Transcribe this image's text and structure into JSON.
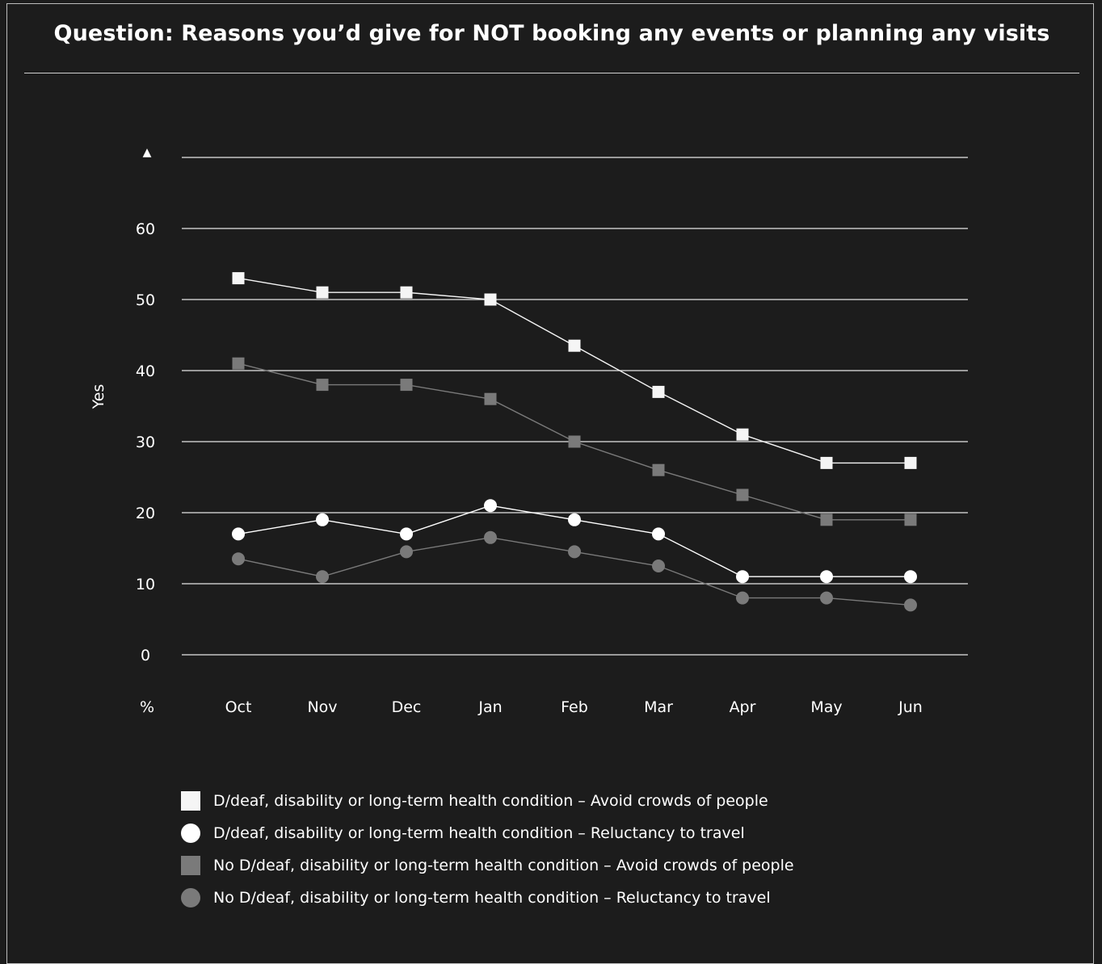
{
  "title": "Question: Reasons you’d give for NOT booking any events or planning any visits",
  "chart_data": {
    "type": "line",
    "title": "Question: Reasons you’d give for NOT booking any events or planning any visits",
    "xlabel": "",
    "ylabel": "Yes",
    "y_unit_label": "%",
    "categories": [
      "Oct",
      "Nov",
      "Dec",
      "Jan",
      "Feb",
      "Mar",
      "Apr",
      "May",
      "Jun"
    ],
    "ylim": [
      0,
      70
    ],
    "yticks": [
      "0",
      "10",
      "20",
      "30",
      "40",
      "50",
      "60"
    ],
    "y_axis_marker": "▲",
    "grid": true,
    "legend_position": "bottom",
    "series": [
      {
        "name": "D/deaf, disability or long-term health condition – Avoid crowds of people",
        "marker": "square",
        "color": "#f5f5f5",
        "values": [
          53,
          51,
          51,
          50,
          43.5,
          37,
          31,
          27,
          27
        ]
      },
      {
        "name": "D/deaf, disability or long-term health condition – Reluctancy to travel",
        "marker": "circle",
        "color": "#ffffff",
        "values": [
          17,
          19,
          17,
          21,
          19,
          17,
          11,
          11,
          11
        ]
      },
      {
        "name": "No D/deaf, disability or long-term health condition – Avoid crowds of people",
        "marker": "square",
        "color": "#7a7a7a",
        "values": [
          41,
          38,
          38,
          36,
          30,
          26,
          22.5,
          19,
          19
        ]
      },
      {
        "name": "No D/deaf, disability or long-term health condition – Reluctancy to travel",
        "marker": "circle",
        "color": "#7a7a7a",
        "values": [
          13.5,
          11,
          14.5,
          16.5,
          14.5,
          12.5,
          8,
          8,
          7
        ]
      }
    ]
  }
}
